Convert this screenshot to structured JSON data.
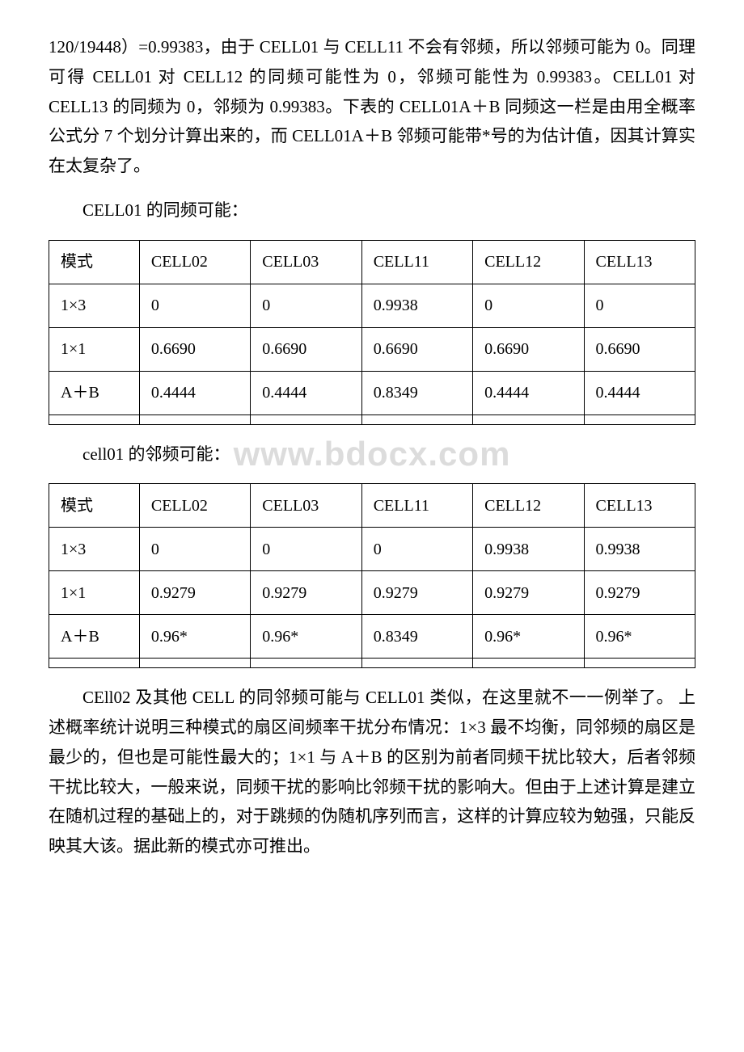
{
  "paragraphs": {
    "p1": "120/19448）=0.99383，由于 CELL01 与 CELL11 不会有邻频，所以邻频可能为 0。同理可得 CELL01 对 CELL12 的同频可能性为 0，邻频可能性为 0.99383。CELL01 对 CELL13 的同频为 0，邻频为 0.99383。下表的 CELL01A＋B 同频这一栏是由用全概率公式分 7 个划分计算出来的，而 CELL01A＋B 邻频可能带*号的为估计值，因其计算实在太复杂了。",
    "p2": "CELL01 的同频可能：",
    "p3": "cell01 的邻频可能：",
    "p4": "CEll02 及其他 CELL 的同邻频可能与 CELL01 类似，在这里就不一一例举了。 上述概率统计说明三种模式的扇区间频率干扰分布情况：1×3 最不均衡，同邻频的扇区是最少的，但也是可能性最大的；1×1 与 A＋B 的区别为前者同频干扰比较大，后者邻频干扰比较大，一般来说，同频干扰的影响比邻频干扰的影响大。但由于上述计算是建立在随机过程的基础上的，对于跳频的伪随机序列而言，这样的计算应较为勉强，只能反映其大该。据此新的模式亦可推出。"
  },
  "watermark": "www.bdocx.com",
  "table1": {
    "header": {
      "mode": "模式",
      "c1": "CELL02",
      "c2": "CELL03",
      "c3": "CELL11",
      "c4": "CELL12",
      "c5": "CELL13"
    },
    "rows": [
      {
        "mode": "1×3",
        "c1": "0",
        "c2": "0",
        "c3": "0.9938",
        "c4": "0",
        "c5": "0"
      },
      {
        "mode": "1×1",
        "c1": "0.6690",
        "c2": "0.6690",
        "c3": "0.6690",
        "c4": "0.6690",
        "c5": "0.6690"
      },
      {
        "mode": "A＋B",
        "c1": "0.4444",
        "c2": "0.4444",
        "c3": "0.8349",
        "c4": "0.4444",
        "c5": "0.4444"
      }
    ]
  },
  "table2": {
    "header": {
      "mode": "模式",
      "c1": "CELL02",
      "c2": "CELL03",
      "c3": "CELL11",
      "c4": "CELL12",
      "c5": "CELL13"
    },
    "rows": [
      {
        "mode": "1×3",
        "c1": "0",
        "c2": "0",
        "c3": "0",
        "c4": "0.9938",
        "c5": "0.9938"
      },
      {
        "mode": "1×1",
        "c1": "0.9279",
        "c2": "0.9279",
        "c3": "0.9279",
        "c4": "0.9279",
        "c5": "0.9279"
      },
      {
        "mode": "A＋B",
        "c1": "0.96*",
        "c2": "0.96*",
        "c3": "0.8349",
        "c4": "0.96*",
        "c5": "0.96*"
      }
    ]
  }
}
